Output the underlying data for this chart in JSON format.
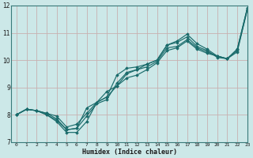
{
  "xlabel": "Humidex (Indice chaleur)",
  "bg_color": "#cce8e8",
  "grid_color": "#c8b0b0",
  "line_color": "#1a6b6b",
  "xlim": [
    -0.5,
    23
  ],
  "ylim": [
    7,
    12
  ],
  "xticks": [
    0,
    1,
    2,
    3,
    4,
    5,
    6,
    7,
    8,
    9,
    10,
    11,
    12,
    13,
    14,
    15,
    16,
    17,
    18,
    19,
    20,
    21,
    22,
    23
  ],
  "yticks": [
    7,
    8,
    9,
    10,
    11,
    12
  ],
  "series": [
    [
      8.0,
      8.2,
      8.15,
      8.0,
      7.75,
      7.35,
      7.35,
      7.75,
      8.45,
      8.85,
      9.05,
      9.5,
      9.65,
      9.85,
      10.0,
      10.55,
      10.7,
      10.95,
      10.6,
      10.4,
      10.15,
      10.05,
      10.4,
      11.9
    ],
    [
      8.0,
      8.2,
      8.15,
      8.0,
      7.8,
      7.45,
      7.5,
      8.25,
      8.45,
      8.65,
      9.45,
      9.7,
      9.75,
      9.85,
      10.0,
      10.55,
      10.65,
      10.85,
      10.5,
      10.35,
      10.1,
      10.05,
      10.4,
      11.9
    ],
    [
      8.0,
      8.2,
      8.15,
      8.05,
      7.85,
      7.45,
      7.5,
      7.95,
      8.4,
      8.55,
      9.15,
      9.55,
      9.65,
      9.75,
      9.95,
      10.45,
      10.5,
      10.75,
      10.45,
      10.3,
      10.15,
      10.05,
      10.35,
      11.85
    ],
    [
      8.0,
      8.2,
      8.15,
      8.05,
      7.95,
      7.55,
      7.65,
      8.05,
      8.45,
      8.65,
      9.05,
      9.35,
      9.45,
      9.65,
      9.9,
      10.35,
      10.45,
      10.7,
      10.4,
      10.25,
      10.15,
      10.05,
      10.3,
      11.85
    ]
  ]
}
